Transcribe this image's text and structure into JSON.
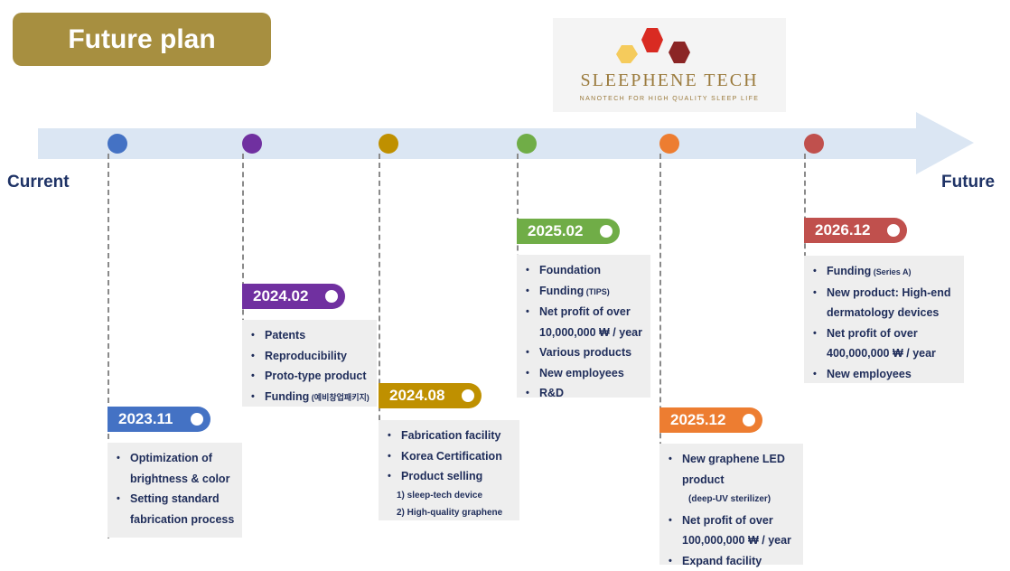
{
  "title": "Future plan",
  "logo": {
    "name": "SLEEPHENE TECH",
    "tagline": "NANOTECH FOR HIGH QUALITY SLEEP LIFE",
    "colors": [
      "#f5cb5c",
      "#d92b22",
      "#8b2525"
    ]
  },
  "timeline": {
    "start_label": "Current",
    "end_label": "Future",
    "arrow_color": "#dbe6f3"
  },
  "milestones": [
    {
      "date": "2023.11",
      "color": "#4472c4",
      "items": [
        {
          "text": "Optimization of"
        },
        {
          "text": "brightness & color",
          "nobullet": true
        },
        {
          "text": "Setting standard"
        },
        {
          "text": "fabrication process",
          "nobullet": true
        }
      ]
    },
    {
      "date": "2024.02",
      "color": "#7030a0",
      "items": [
        {
          "text": "Patents"
        },
        {
          "text": "Reproducibility"
        },
        {
          "text": "Proto-type product"
        },
        {
          "text": "Funding",
          "sub": "(예비창업패키지)"
        }
      ]
    },
    {
      "date": "2024.08",
      "color": "#bf9000",
      "items": [
        {
          "text": "Fabrication facility"
        },
        {
          "text": "Korea Certification"
        },
        {
          "text": "Product selling"
        },
        {
          "text": "1) sleep-tech device",
          "small": true
        },
        {
          "text": "2) High-quality graphene",
          "small": true
        }
      ]
    },
    {
      "date": "2025.02",
      "color": "#70ad47",
      "items": [
        {
          "text": "Foundation"
        },
        {
          "text": "Funding",
          "sub": "(TIPS)"
        },
        {
          "text": "Net profit of over"
        },
        {
          "text": "10,000,000 ₩ / year",
          "nobullet": true
        },
        {
          "text": "Various products"
        },
        {
          "text": "New employees"
        },
        {
          "text": "R&D"
        }
      ]
    },
    {
      "date": "2025.12",
      "color": "#ed7d31",
      "items": [
        {
          "text": "New graphene LED"
        },
        {
          "text": "product",
          "nobullet": true
        },
        {
          "text": "(deep-UV sterilizer)",
          "nobullet": true,
          "center_sub": true
        },
        {
          "text": "Net profit of over"
        },
        {
          "text": "100,000,000 ₩ / year",
          "nobullet": true
        },
        {
          "text": "Expand facility"
        }
      ]
    },
    {
      "date": "2026.12",
      "color": "#c0504d",
      "items": [
        {
          "text": "Funding",
          "sub": "(Series A)"
        },
        {
          "text": "New product: High-end"
        },
        {
          "text": "dermatology devices",
          "nobullet": true
        },
        {
          "text": "Net profit of over"
        },
        {
          "text": "400,000,000 ₩ / year",
          "nobullet": true
        },
        {
          "text": "New employees"
        }
      ]
    }
  ]
}
